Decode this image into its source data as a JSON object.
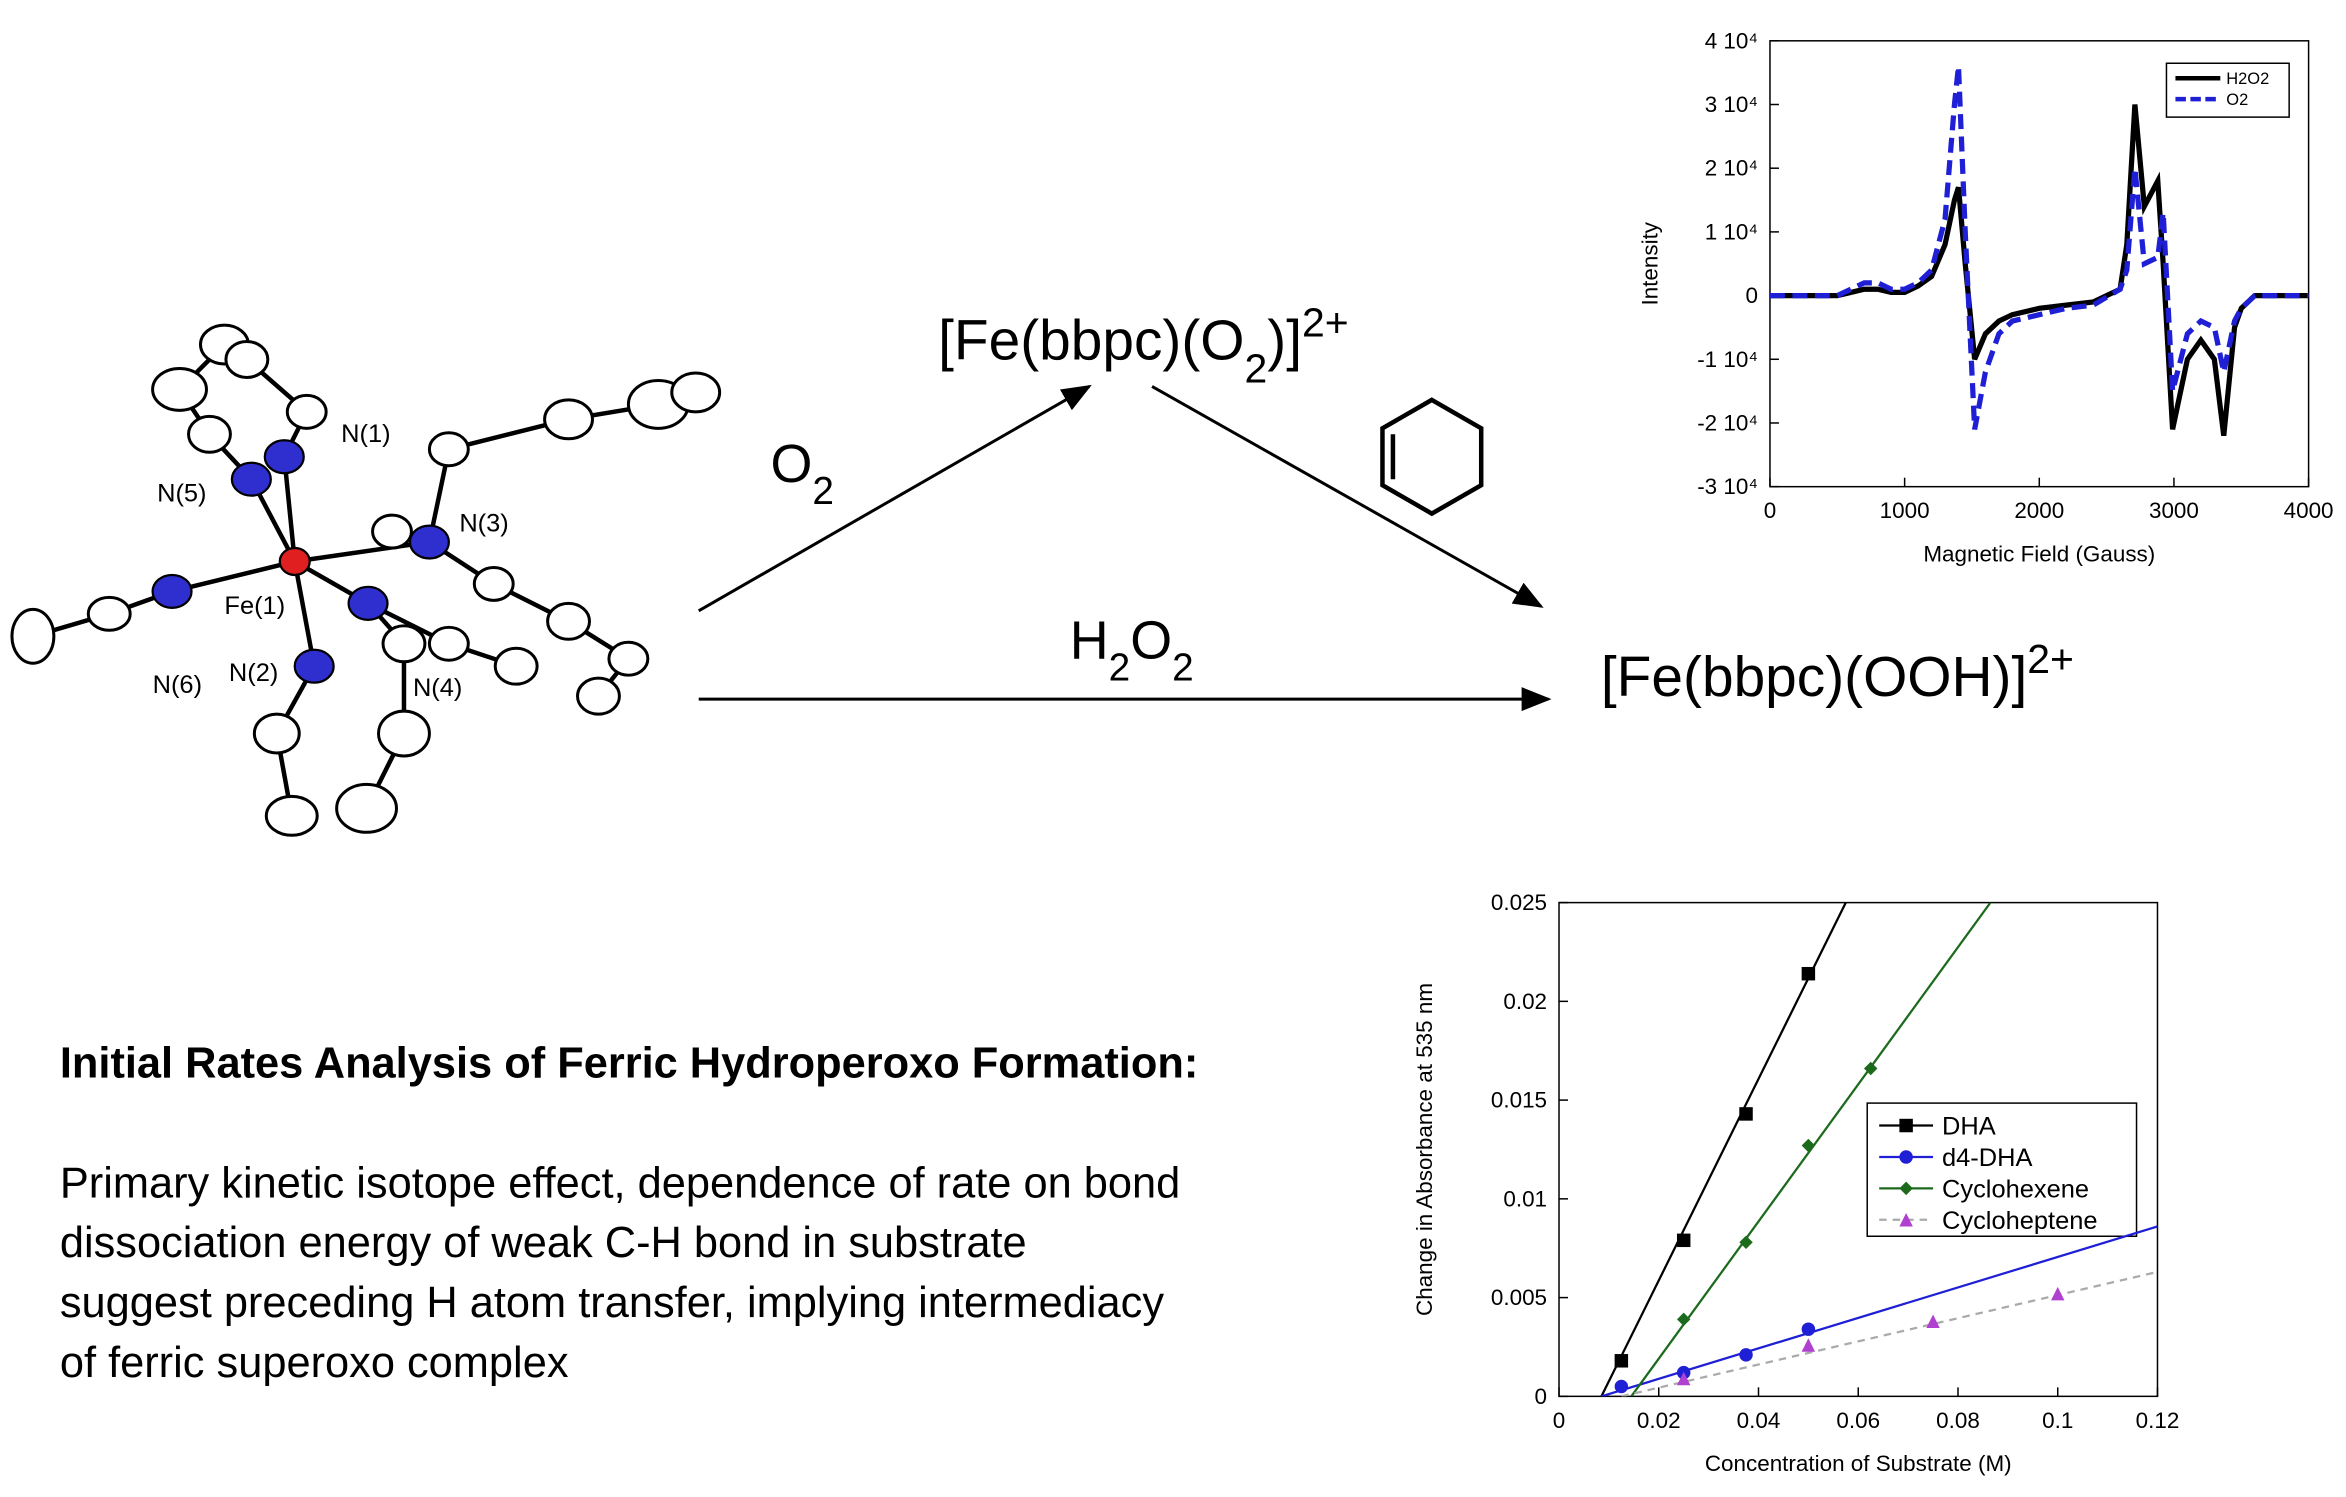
{
  "structure_labels": [
    "N(1)",
    "N(5)",
    "N(3)",
    "Fe(1)",
    "N(6)",
    "N(2)",
    "N(4)"
  ],
  "scheme": {
    "intermediate": [
      "[Fe(bbpc)(O",
      "2",
      ")]",
      "2+"
    ],
    "reagent_top": [
      "O",
      "2"
    ],
    "reagent_bottom": [
      "H",
      "2",
      "O",
      "2"
    ],
    "product": [
      "[Fe(bbpc)(OOH)]",
      "2+"
    ]
  },
  "text": {
    "heading": "Initial Rates Analysis of Ferric Hydroperoxo Formation:",
    "body": [
      "Primary kinetic isotope effect, dependence of rate on bond",
      "dissociation energy of weak C-H bond in substrate",
      "suggest preceding H atom transfer, implying intermediacy",
      "of ferric superoxo complex"
    ]
  },
  "chart_data": [
    {
      "type": "line",
      "x_label": "Magnetic Field (Gauss)",
      "y_label": "Intensity",
      "xlim": [
        0,
        4000
      ],
      "xticks": [
        0,
        1000,
        2000,
        3000,
        4000
      ],
      "ylim": [
        -30000,
        40000
      ],
      "yticks": [
        {
          "value": -30000,
          "label": "-3 10⁴"
        },
        {
          "value": -20000,
          "label": "-2 10⁴"
        },
        {
          "value": -10000,
          "label": "-1 10⁴"
        },
        0,
        {
          "value": 10000,
          "label": "1 10⁴"
        },
        {
          "value": 20000,
          "label": "2 10⁴"
        },
        {
          "value": 30000,
          "label": "3 10⁴"
        },
        {
          "value": 40000,
          "label": "4 10⁴"
        }
      ],
      "x": [
        0,
        500,
        600,
        700,
        800,
        900,
        1000,
        1100,
        1200,
        1300,
        1370,
        1400,
        1450,
        1520,
        1600,
        1700,
        1800,
        2000,
        2200,
        2400,
        2600,
        2650,
        2710,
        2780,
        2880,
        2920,
        2990,
        3100,
        3200,
        3300,
        3370,
        3450,
        3500,
        3600,
        4000
      ],
      "series": [
        {
          "name": "H2O2",
          "color": "#000000",
          "dashed": false,
          "values": [
            0,
            0,
            500,
            1000,
            1000,
            500,
            500,
            1500,
            3000,
            8000,
            15000,
            17000,
            5000,
            -10000,
            -6000,
            -4000,
            -3000,
            -2000,
            -1500,
            -1000,
            1000,
            8000,
            30000,
            14000,
            18000,
            5000,
            -21000,
            -10000,
            -7000,
            -10000,
            -22000,
            -5000,
            -2000,
            0,
            0
          ]
        },
        {
          "name": "O2",
          "color": "#1f1fd6",
          "dashed": true,
          "values": [
            0,
            0,
            1000,
            2000,
            2000,
            1000,
            1000,
            2000,
            4000,
            12000,
            30000,
            36000,
            10000,
            -21000,
            -12000,
            -6000,
            -4000,
            -3000,
            -2000,
            -1500,
            1000,
            4000,
            20000,
            5000,
            6000,
            13000,
            -15000,
            -6000,
            -4000,
            -5000,
            -12000,
            -4000,
            -2000,
            0,
            0
          ]
        }
      ]
    },
    {
      "type": "scatter",
      "x_label": "Concentration of Substrate (M)",
      "y_label": "Change in Absorbance at 535 nm",
      "xlim": [
        0,
        0.12
      ],
      "xticks": [
        0,
        0.02,
        0.04,
        0.06,
        0.08,
        0.1,
        0.12
      ],
      "ylim": [
        0,
        0.025
      ],
      "yticks": [
        0,
        0.005,
        0.01,
        0.015,
        0.02,
        0.025
      ],
      "series": [
        {
          "name": "DHA",
          "color": "#000000",
          "marker": "square",
          "dashed": false,
          "x": [
            0.0125,
            0.025,
            0.0375,
            0.05
          ],
          "values": [
            0.0018,
            0.0079,
            0.0143,
            0.0214
          ],
          "fit": {
            "x": [
              0.0085,
              0.0575
            ],
            "values": [
              0,
              0.025
            ]
          }
        },
        {
          "name": "d4-DHA",
          "color": "#1f1fd6",
          "marker": "circle",
          "dashed": false,
          "x": [
            0.0125,
            0.025,
            0.0375,
            0.05
          ],
          "values": [
            0.0005,
            0.0012,
            0.0021,
            0.0034
          ],
          "fit": {
            "x": [
              0.0085,
              0.12
            ],
            "values": [
              0,
              0.0086
            ]
          }
        },
        {
          "name": "Cyclohexene",
          "color": "#1c6b1c",
          "marker": "diamond",
          "dashed": false,
          "x": [
            0.025,
            0.0375,
            0.05,
            0.0625
          ],
          "values": [
            0.0039,
            0.0078,
            0.0127,
            0.0166
          ],
          "fit": {
            "x": [
              0.0145,
              0.0865
            ],
            "values": [
              0,
              0.025
            ]
          }
        },
        {
          "name": "Cycloheptene",
          "color": "#b040d0",
          "marker": "triangle",
          "dashed": true,
          "x": [
            0.025,
            0.05,
            0.075,
            0.1
          ],
          "values": [
            0.0009,
            0.0026,
            0.0038,
            0.0052
          ],
          "fit": {
            "x": [
              0.0125,
              0.12
            ],
            "values": [
              0,
              0.0063
            ]
          }
        }
      ]
    }
  ]
}
